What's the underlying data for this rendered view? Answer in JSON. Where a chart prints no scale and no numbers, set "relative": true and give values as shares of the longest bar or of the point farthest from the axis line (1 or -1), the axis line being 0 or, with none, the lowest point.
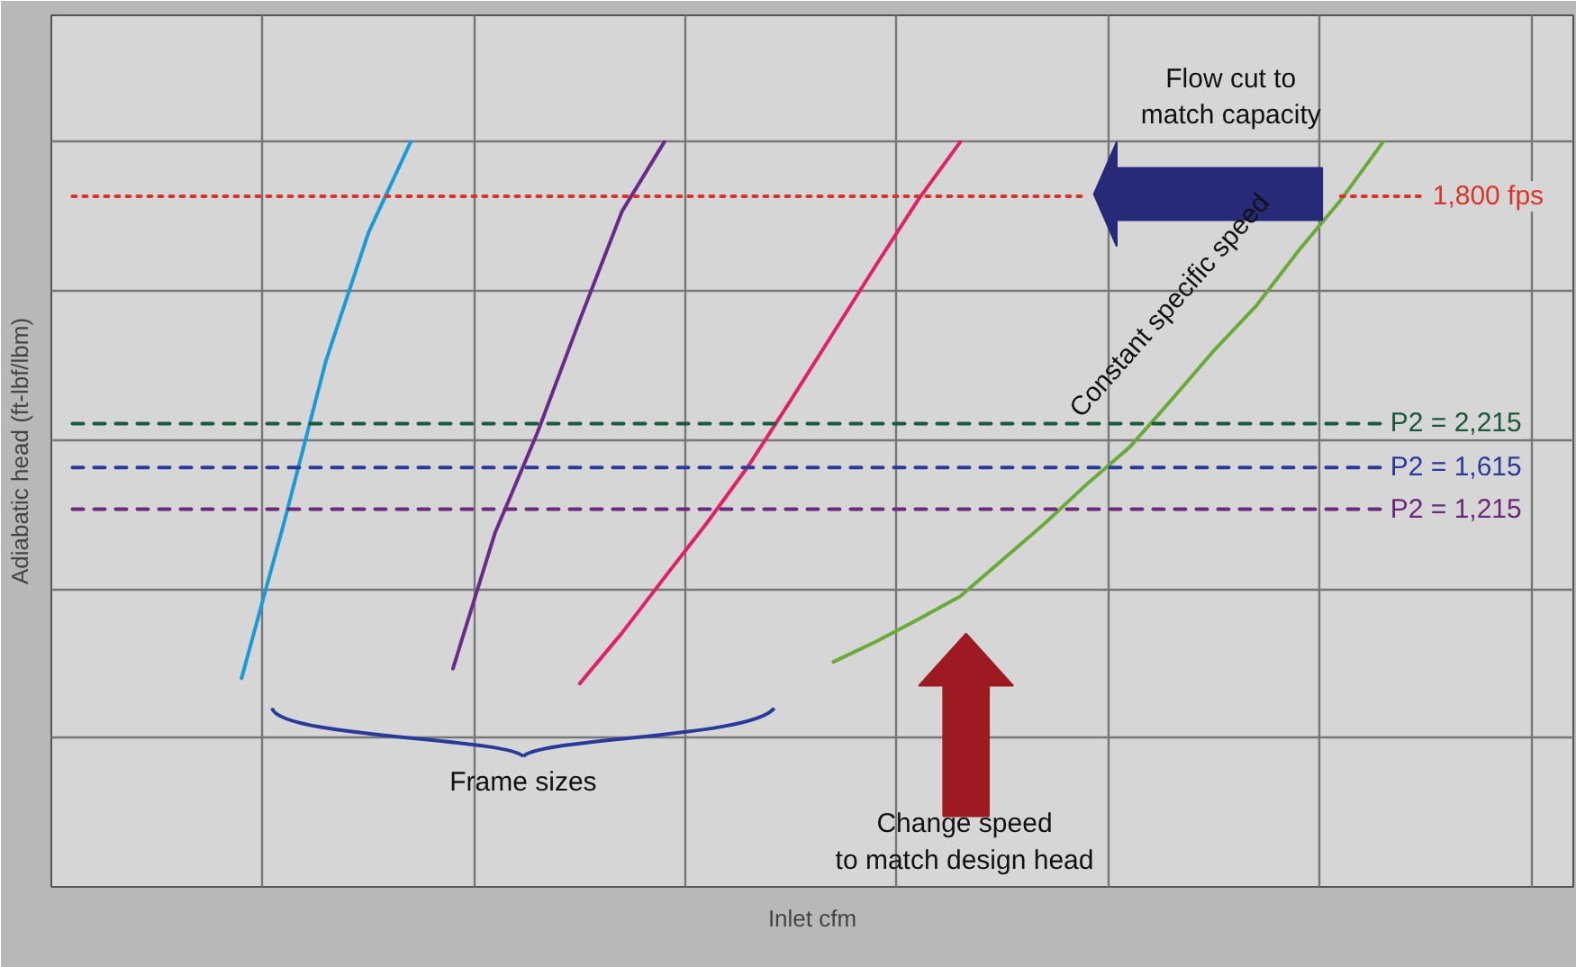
{
  "chart_data": {
    "type": "line",
    "relative": true,
    "xlabel": "Inlet cfm",
    "ylabel": "Adiabatic head (ft-lbf/lbm)",
    "grid": true,
    "tick_labels": false,
    "marker": "none",
    "categories": [
      null,
      null,
      null,
      null,
      null,
      null,
      null,
      null,
      null,
      null,
      null,
      null,
      null,
      null,
      null,
      null,
      null,
      null,
      null,
      null,
      null,
      null,
      null,
      null,
      null,
      null,
      null,
      null,
      null,
      null,
      null,
      null,
      null,
      null,
      null,
      null
    ],
    "series": [
      {
        "color": "#1a9ad6",
        "line_style": "solid",
        "values": [
          null,
          null,
          null,
          null,
          0.28,
          0.488,
          0.707,
          0.878,
          1.0,
          null,
          null,
          null,
          null,
          null,
          null,
          null,
          null,
          null,
          null,
          null,
          null,
          null,
          null,
          null,
          null,
          null,
          null,
          null,
          null,
          null,
          null,
          null,
          null,
          null,
          null,
          null
        ]
      },
      {
        "color": "#6a2a8a",
        "line_style": "solid",
        "values": [
          null,
          null,
          null,
          null,
          null,
          null,
          null,
          null,
          null,
          0.293,
          0.476,
          0.61,
          0.761,
          0.907,
          1.0,
          null,
          null,
          null,
          null,
          null,
          null,
          null,
          null,
          null,
          null,
          null,
          null,
          null,
          null,
          null,
          null,
          null,
          null,
          null,
          null,
          null
        ]
      },
      {
        "color": "#e0206a",
        "line_style": "solid",
        "values": [
          null,
          null,
          null,
          null,
          null,
          null,
          null,
          null,
          null,
          null,
          null,
          null,
          0.273,
          0.341,
          0.415,
          0.488,
          0.566,
          0.654,
          0.744,
          0.834,
          0.922,
          1.0,
          null,
          null,
          null,
          null,
          null,
          null,
          null,
          null,
          null,
          null,
          null,
          null,
          null,
          null
        ]
      },
      {
        "color": "#6aaa3a",
        "line_style": "solid",
        "values": [
          null,
          null,
          null,
          null,
          null,
          null,
          null,
          null,
          null,
          null,
          null,
          null,
          null,
          null,
          null,
          null,
          null,
          null,
          0.302,
          0.329,
          0.359,
          0.39,
          0.439,
          0.488,
          0.541,
          0.59,
          0.654,
          0.72,
          0.78,
          0.854,
          0.922,
          1.0,
          null,
          null,
          null,
          null
        ]
      },
      {
        "name": "1,800 fps",
        "color": "#d8342a",
        "line_style": "dotted",
        "values": [
          0.927,
          0.927,
          0.927,
          0.927,
          0.927,
          0.927,
          0.927,
          0.927,
          0.927,
          0.927,
          0.927,
          0.927,
          0.927,
          0.927,
          0.927,
          0.927,
          0.927,
          0.927,
          0.927,
          0.927,
          0.927,
          0.927,
          0.927,
          0.927,
          0.927,
          null,
          null,
          null,
          null,
          null,
          0.927,
          0.927,
          0.927,
          null,
          null,
          null
        ]
      },
      {
        "name": "P2 = 2,215",
        "color": "#1a5a3a",
        "line_style": "dashed",
        "values": [
          0.622,
          0.622,
          0.622,
          0.622,
          0.622,
          0.622,
          0.622,
          0.622,
          0.622,
          0.622,
          0.622,
          0.622,
          0.622,
          0.622,
          0.622,
          0.622,
          0.622,
          0.622,
          0.622,
          0.622,
          0.622,
          0.622,
          0.622,
          0.622,
          0.622,
          0.622,
          0.622,
          0.622,
          0.622,
          0.622,
          0.622,
          0.622,
          null,
          null,
          null,
          null
        ]
      },
      {
        "name": "P2 = 1,615",
        "color": "#2a3a9a",
        "line_style": "dashed",
        "values": [
          0.563,
          0.563,
          0.563,
          0.563,
          0.563,
          0.563,
          0.563,
          0.563,
          0.563,
          0.563,
          0.563,
          0.563,
          0.563,
          0.563,
          0.563,
          0.563,
          0.563,
          0.563,
          0.563,
          0.563,
          0.563,
          0.563,
          0.563,
          0.563,
          0.563,
          0.563,
          0.563,
          0.563,
          0.563,
          0.563,
          0.563,
          0.563,
          null,
          null,
          null,
          null
        ]
      },
      {
        "name": "P2 = 1,215",
        "color": "#6a2a7a",
        "line_style": "dashed",
        "values": [
          0.507,
          0.507,
          0.507,
          0.507,
          0.507,
          0.507,
          0.507,
          0.507,
          0.507,
          0.507,
          0.507,
          0.507,
          0.507,
          0.507,
          0.507,
          0.507,
          0.507,
          0.507,
          0.507,
          0.507,
          0.507,
          0.507,
          0.507,
          0.507,
          0.507,
          0.507,
          0.507,
          0.507,
          0.507,
          0.507,
          0.507,
          0.507,
          null,
          null,
          null,
          null
        ]
      }
    ],
    "annotations": [
      "Flow cut to\nmatch capacity",
      "Constant specific speed",
      "Frame sizes",
      "Change speed\nto match design head"
    ]
  }
}
